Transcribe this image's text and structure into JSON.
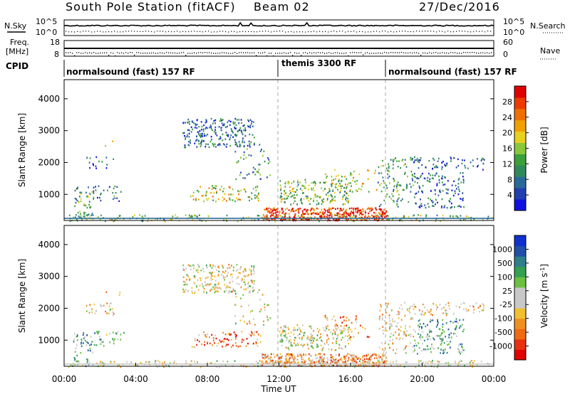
{
  "header": {
    "station_title": "South Pole Station (fitACF)",
    "beam": "Beam 02",
    "date": "27/Dec/2016"
  },
  "strip_labels": {
    "nsky": "N.Sky",
    "nsearch": "N.Search",
    "freq": "Freq.",
    "freq_unit": "[MHz]",
    "nave": "Nave",
    "cpid": "CPID"
  },
  "strip_ticks": {
    "noise_top": "10^5",
    "noise_bottom": "10^0",
    "freq_top": "18",
    "freq_bottom": "8",
    "nave_top": "60",
    "nave_bottom": "0"
  },
  "cpid_segments": [
    {
      "label": "normalsound (fast) 157 RF",
      "start_hour": 0
    },
    {
      "label": "themis 3300 RF",
      "start_hour": 12
    },
    {
      "label": "normalsound (fast) 157 RF",
      "start_hour": 18
    }
  ],
  "chart_data": [
    {
      "type": "heatmap",
      "name": "power",
      "ylabel": "Slant Range [km]",
      "ylim": [
        180,
        4600
      ],
      "xlim_hours": [
        0,
        24
      ],
      "yticks": [
        "1000",
        "2000",
        "3000",
        "4000"
      ],
      "colorbar": {
        "label": "Power [dB]",
        "ticks": [
          "4",
          "8",
          "12",
          "16",
          "20",
          "24",
          "28"
        ],
        "colors": [
          "#1010e0",
          "#2040b0",
          "#2a6a9a",
          "#2f8a5a",
          "#3aa03a",
          "#8ac83a",
          "#e8d020",
          "#f0a000",
          "#ef7000",
          "#ee3a00",
          "#e00000"
        ]
      }
    },
    {
      "type": "heatmap",
      "name": "velocity",
      "ylabel": "Slant Range [km]",
      "xlabel": "Time UT",
      "ylim": [
        180,
        4600
      ],
      "xlim_hours": [
        0,
        24
      ],
      "yticks": [
        "1000",
        "2000",
        "3000",
        "4000"
      ],
      "xticks": [
        "00:00",
        "04:00",
        "08:00",
        "12:00",
        "16:00",
        "20:00",
        "00:00"
      ],
      "colorbar": {
        "label": "Velocity [m s",
        "label_sup": "-1",
        "label_end": "]",
        "ticks": [
          "1000",
          "500",
          "100",
          "25",
          "-25",
          "-100",
          "-500",
          "-1000"
        ],
        "colors": [
          "#1030d0",
          "#2050a8",
          "#2e7f8a",
          "#34a050",
          "#6cc040",
          "#c8c8c8",
          "#c8c8c8",
          "#f0c030",
          "#f09020",
          "#ef6a10",
          "#e83010",
          "#e00000"
        ]
      }
    }
  ]
}
